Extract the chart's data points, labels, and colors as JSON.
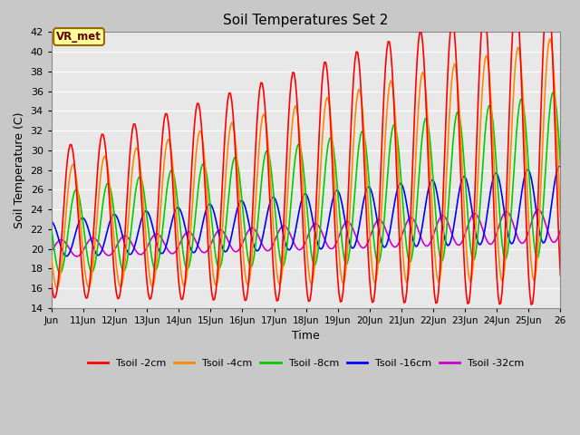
{
  "title": "Soil Temperatures Set 2",
  "xlabel": "Time",
  "ylabel": "Soil Temperature (C)",
  "ylim": [
    14,
    42
  ],
  "yticks": [
    14,
    16,
    18,
    20,
    22,
    24,
    26,
    28,
    30,
    32,
    34,
    36,
    38,
    40,
    42
  ],
  "x_tick_labels": [
    "Jun",
    "11Jun",
    "12Jun",
    "13Jun",
    "14Jun",
    "15Jun",
    "16Jun",
    "17Jun",
    "18Jun",
    "19Jun",
    "20Jun",
    "21Jun",
    "22Jun",
    "23Jun",
    "24Jun",
    "25Jun",
    "26"
  ],
  "series_colors": [
    "#ff0000",
    "#ff8800",
    "#00cc00",
    "#0000ff",
    "#cc00cc"
  ],
  "series_labels": [
    "Tsoil -2cm",
    "Tsoil -4cm",
    "Tsoil -8cm",
    "Tsoil -16cm",
    "Tsoil -32cm"
  ],
  "annotation_text": "VR_met",
  "annotation_bg": "#ffff99",
  "annotation_border": "#996600",
  "plot_bg": "#e8e8e8",
  "grid_color": "#ffffff",
  "linewidth": 1.2
}
